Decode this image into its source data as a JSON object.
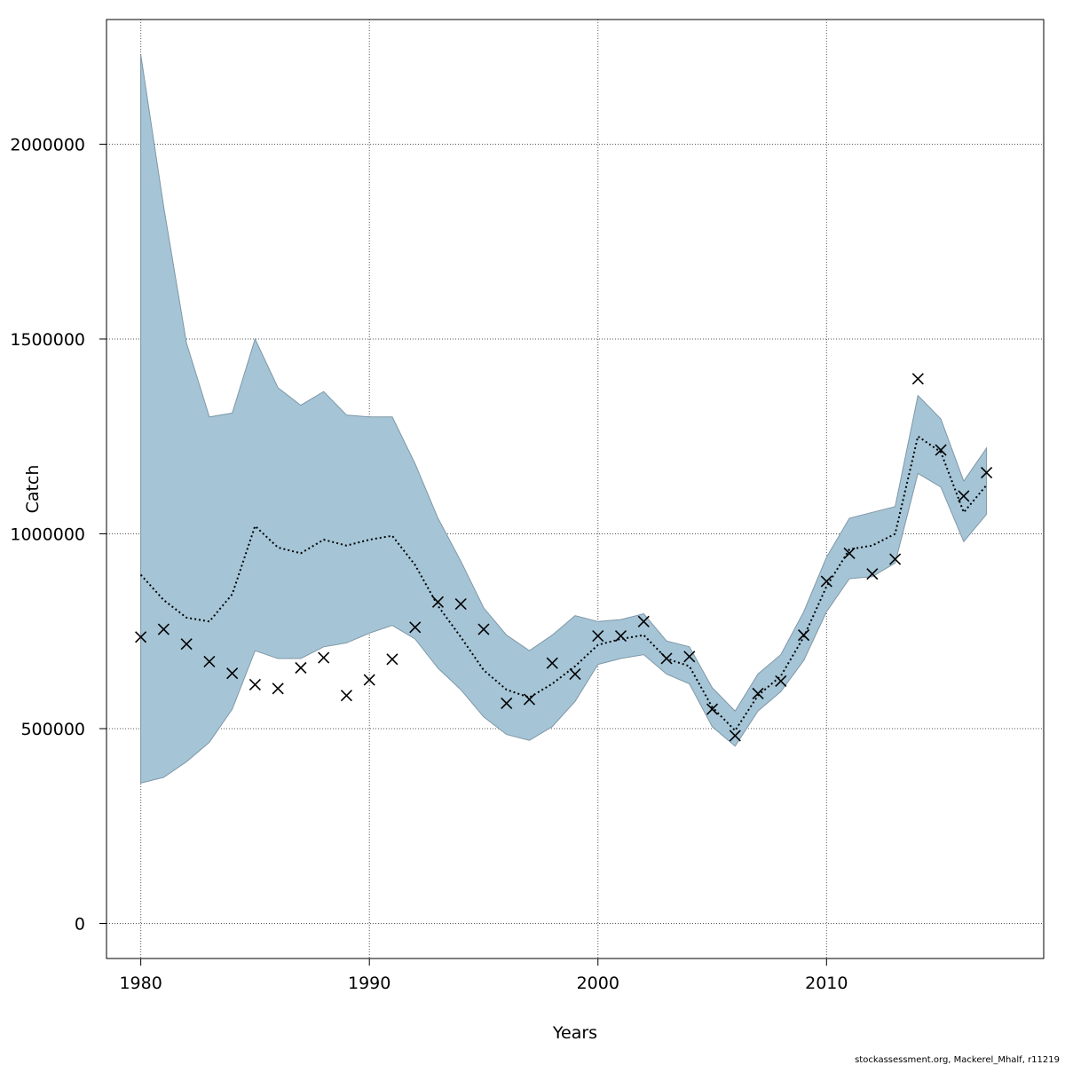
{
  "chart_data": {
    "type": "line",
    "xlabel": "Years",
    "ylabel": "Catch",
    "xlim": [
      1978.5,
      2019.5
    ],
    "ylim": [
      -90000,
      2320000
    ],
    "x_ticks": [
      1980,
      1990,
      2000,
      2010
    ],
    "y_ticks": [
      0,
      500000,
      1000000,
      1500000,
      2000000
    ],
    "y_tick_labels": [
      "0",
      "500000",
      "1000000",
      "1500000",
      "2000000"
    ],
    "x_tick_labels": [
      "1980",
      "1990",
      "2000",
      "2010"
    ],
    "grid": true,
    "years": [
      1980,
      1981,
      1982,
      1983,
      1984,
      1985,
      1986,
      1987,
      1988,
      1989,
      1990,
      1991,
      1992,
      1993,
      1994,
      1995,
      1996,
      1997,
      1998,
      1999,
      2000,
      2001,
      2002,
      2003,
      2004,
      2005,
      2006,
      2007,
      2008,
      2009,
      2010,
      2011,
      2012,
      2013,
      2014,
      2015,
      2016,
      2017
    ],
    "series": [
      {
        "type": "band",
        "upper": [
          2230000,
          1840000,
          1490000,
          1300000,
          1310000,
          1500000,
          1375000,
          1330000,
          1365000,
          1305000,
          1300000,
          1300000,
          1180000,
          1040000,
          930000,
          810000,
          740000,
          700000,
          740000,
          790000,
          775000,
          780000,
          795000,
          725000,
          710000,
          605000,
          545000,
          640000,
          690000,
          800000,
          940000,
          1040000,
          1055000,
          1070000,
          1355000,
          1295000,
          1135000,
          1220000
        ],
        "lower": [
          360000,
          375000,
          415000,
          465000,
          550000,
          700000,
          680000,
          680000,
          710000,
          720000,
          745000,
          765000,
          730000,
          655000,
          600000,
          530000,
          485000,
          470000,
          505000,
          570000,
          665000,
          680000,
          690000,
          640000,
          615000,
          505000,
          455000,
          545000,
          595000,
          675000,
          800000,
          885000,
          890000,
          925000,
          1155000,
          1120000,
          980000,
          1050000
        ],
        "color": "#a5c5d7"
      },
      {
        "type": "line",
        "style": "dotted",
        "values": [
          895000,
          830000,
          785000,
          775000,
          845000,
          1020000,
          965000,
          950000,
          985000,
          970000,
          985000,
          995000,
          920000,
          815000,
          735000,
          650000,
          600000,
          580000,
          615000,
          660000,
          715000,
          730000,
          740000,
          680000,
          660000,
          555000,
          495000,
          585000,
          635000,
          735000,
          865000,
          960000,
          970000,
          1000000,
          1250000,
          1210000,
          1055000,
          1125000
        ],
        "color": "#000000"
      },
      {
        "type": "scatter",
        "marker": "x",
        "values": [
          735000,
          755000,
          717000,
          672000,
          642000,
          613000,
          603000,
          656000,
          682000,
          585000,
          625000,
          678000,
          760000,
          825000,
          820000,
          755000,
          565000,
          575000,
          668000,
          640000,
          738000,
          738000,
          775000,
          680000,
          685000,
          550000,
          482000,
          590000,
          622000,
          740000,
          878000,
          950000,
          897000,
          935000,
          1398000,
          1215000,
          1097000,
          1157000
        ],
        "color": "#000000"
      }
    ]
  },
  "credit": "stockassessment.org, Mackerel_Mhalf, r11219"
}
